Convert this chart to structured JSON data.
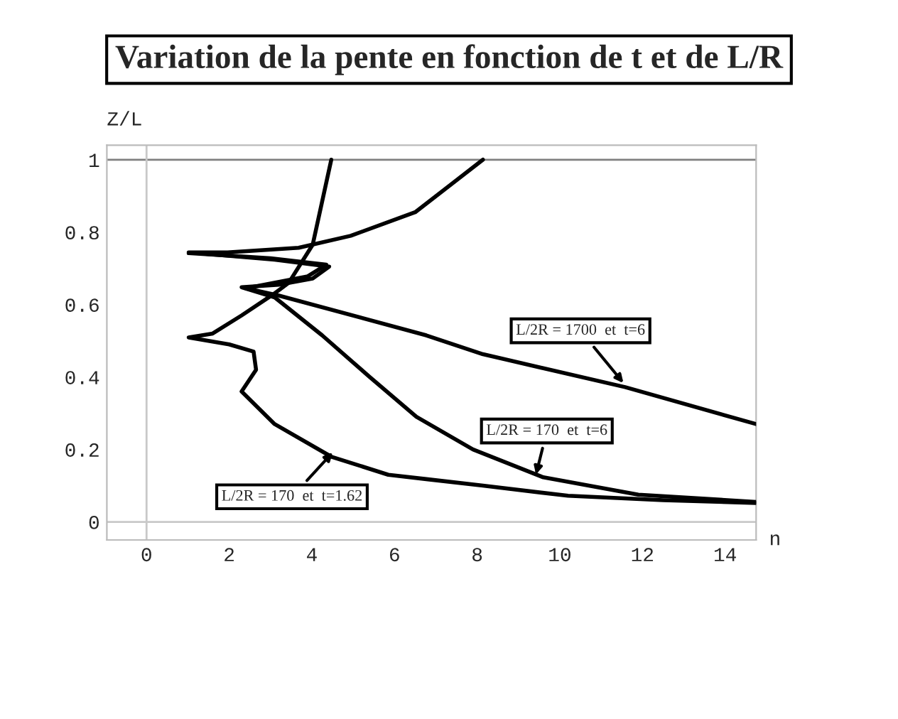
{
  "chart_data": {
    "type": "line",
    "title": "Variation de la pente en fonction de t et de L/R",
    "xlabel": "n",
    "ylabel": "Z/L",
    "series": [
      {
        "color": "#000000",
        "x": [
          4.47,
          4.02,
          3.44,
          3.05,
          2.3,
          1.6,
          1.02,
          2.0,
          2.59,
          2.65,
          2.3,
          3.1,
          4.47,
          5.85,
          6.77,
          8.14,
          10.2,
          12.5,
          14.75
        ],
        "values": [
          1.0,
          0.765,
          0.66,
          0.627,
          0.57,
          0.52,
          0.509,
          0.49,
          0.47,
          0.42,
          0.36,
          0.27,
          0.18,
          0.13,
          0.118,
          0.1,
          0.072,
          0.06,
          0.052
        ]
      },
      {
        "color": "#000000",
        "x": [
          8.14,
          6.5,
          4.94,
          3.68,
          1.96,
          1.02,
          3.1,
          4.42,
          4.02,
          3.2,
          2.3,
          3.1,
          4.25,
          5.4,
          6.53,
          7.9,
          9.6,
          11.9,
          14.75
        ],
        "values": [
          1.0,
          0.855,
          0.79,
          0.757,
          0.744,
          0.744,
          0.724,
          0.705,
          0.672,
          0.655,
          0.648,
          0.62,
          0.515,
          0.4,
          0.29,
          0.2,
          0.123,
          0.075,
          0.055
        ]
      },
      {
        "color": "#000000",
        "x": [
          1.02,
          3.0,
          4.35,
          3.9,
          2.4,
          3.2,
          6.77,
          8.14,
          11.58,
          14.75
        ],
        "values": [
          0.742,
          0.728,
          0.71,
          0.678,
          0.645,
          0.625,
          0.515,
          0.463,
          0.372,
          0.27
        ]
      }
    ],
    "xlim": [
      -0.96,
      14.75
    ],
    "ylim": [
      -0.05,
      1.04
    ],
    "xticks": [
      0,
      2,
      4,
      6,
      8,
      10,
      12,
      14
    ],
    "yticks": [
      0,
      0.2,
      0.4,
      0.6,
      0.8,
      1
    ],
    "ref_lines": [
      {
        "axis": "y",
        "value": 1,
        "color": "#808080"
      },
      {
        "axis": "y",
        "value": 0,
        "color": "#c8c8c8"
      },
      {
        "axis": "x",
        "value": 0,
        "color": "#c8c8c8"
      }
    ],
    "annotations": [
      {
        "text": "L/2R = 1700  et  t=6",
        "x": 11.6,
        "y": 0.375
      },
      {
        "text": "L/2R = 170  et  t=6",
        "x": 9.4,
        "y": 0.12
      },
      {
        "text": "L/2R = 170  et  t=1.62",
        "x": 4.57,
        "y": 0.2
      }
    ],
    "grid": false,
    "legend": false,
    "marker": "none",
    "line_style": "solid"
  }
}
